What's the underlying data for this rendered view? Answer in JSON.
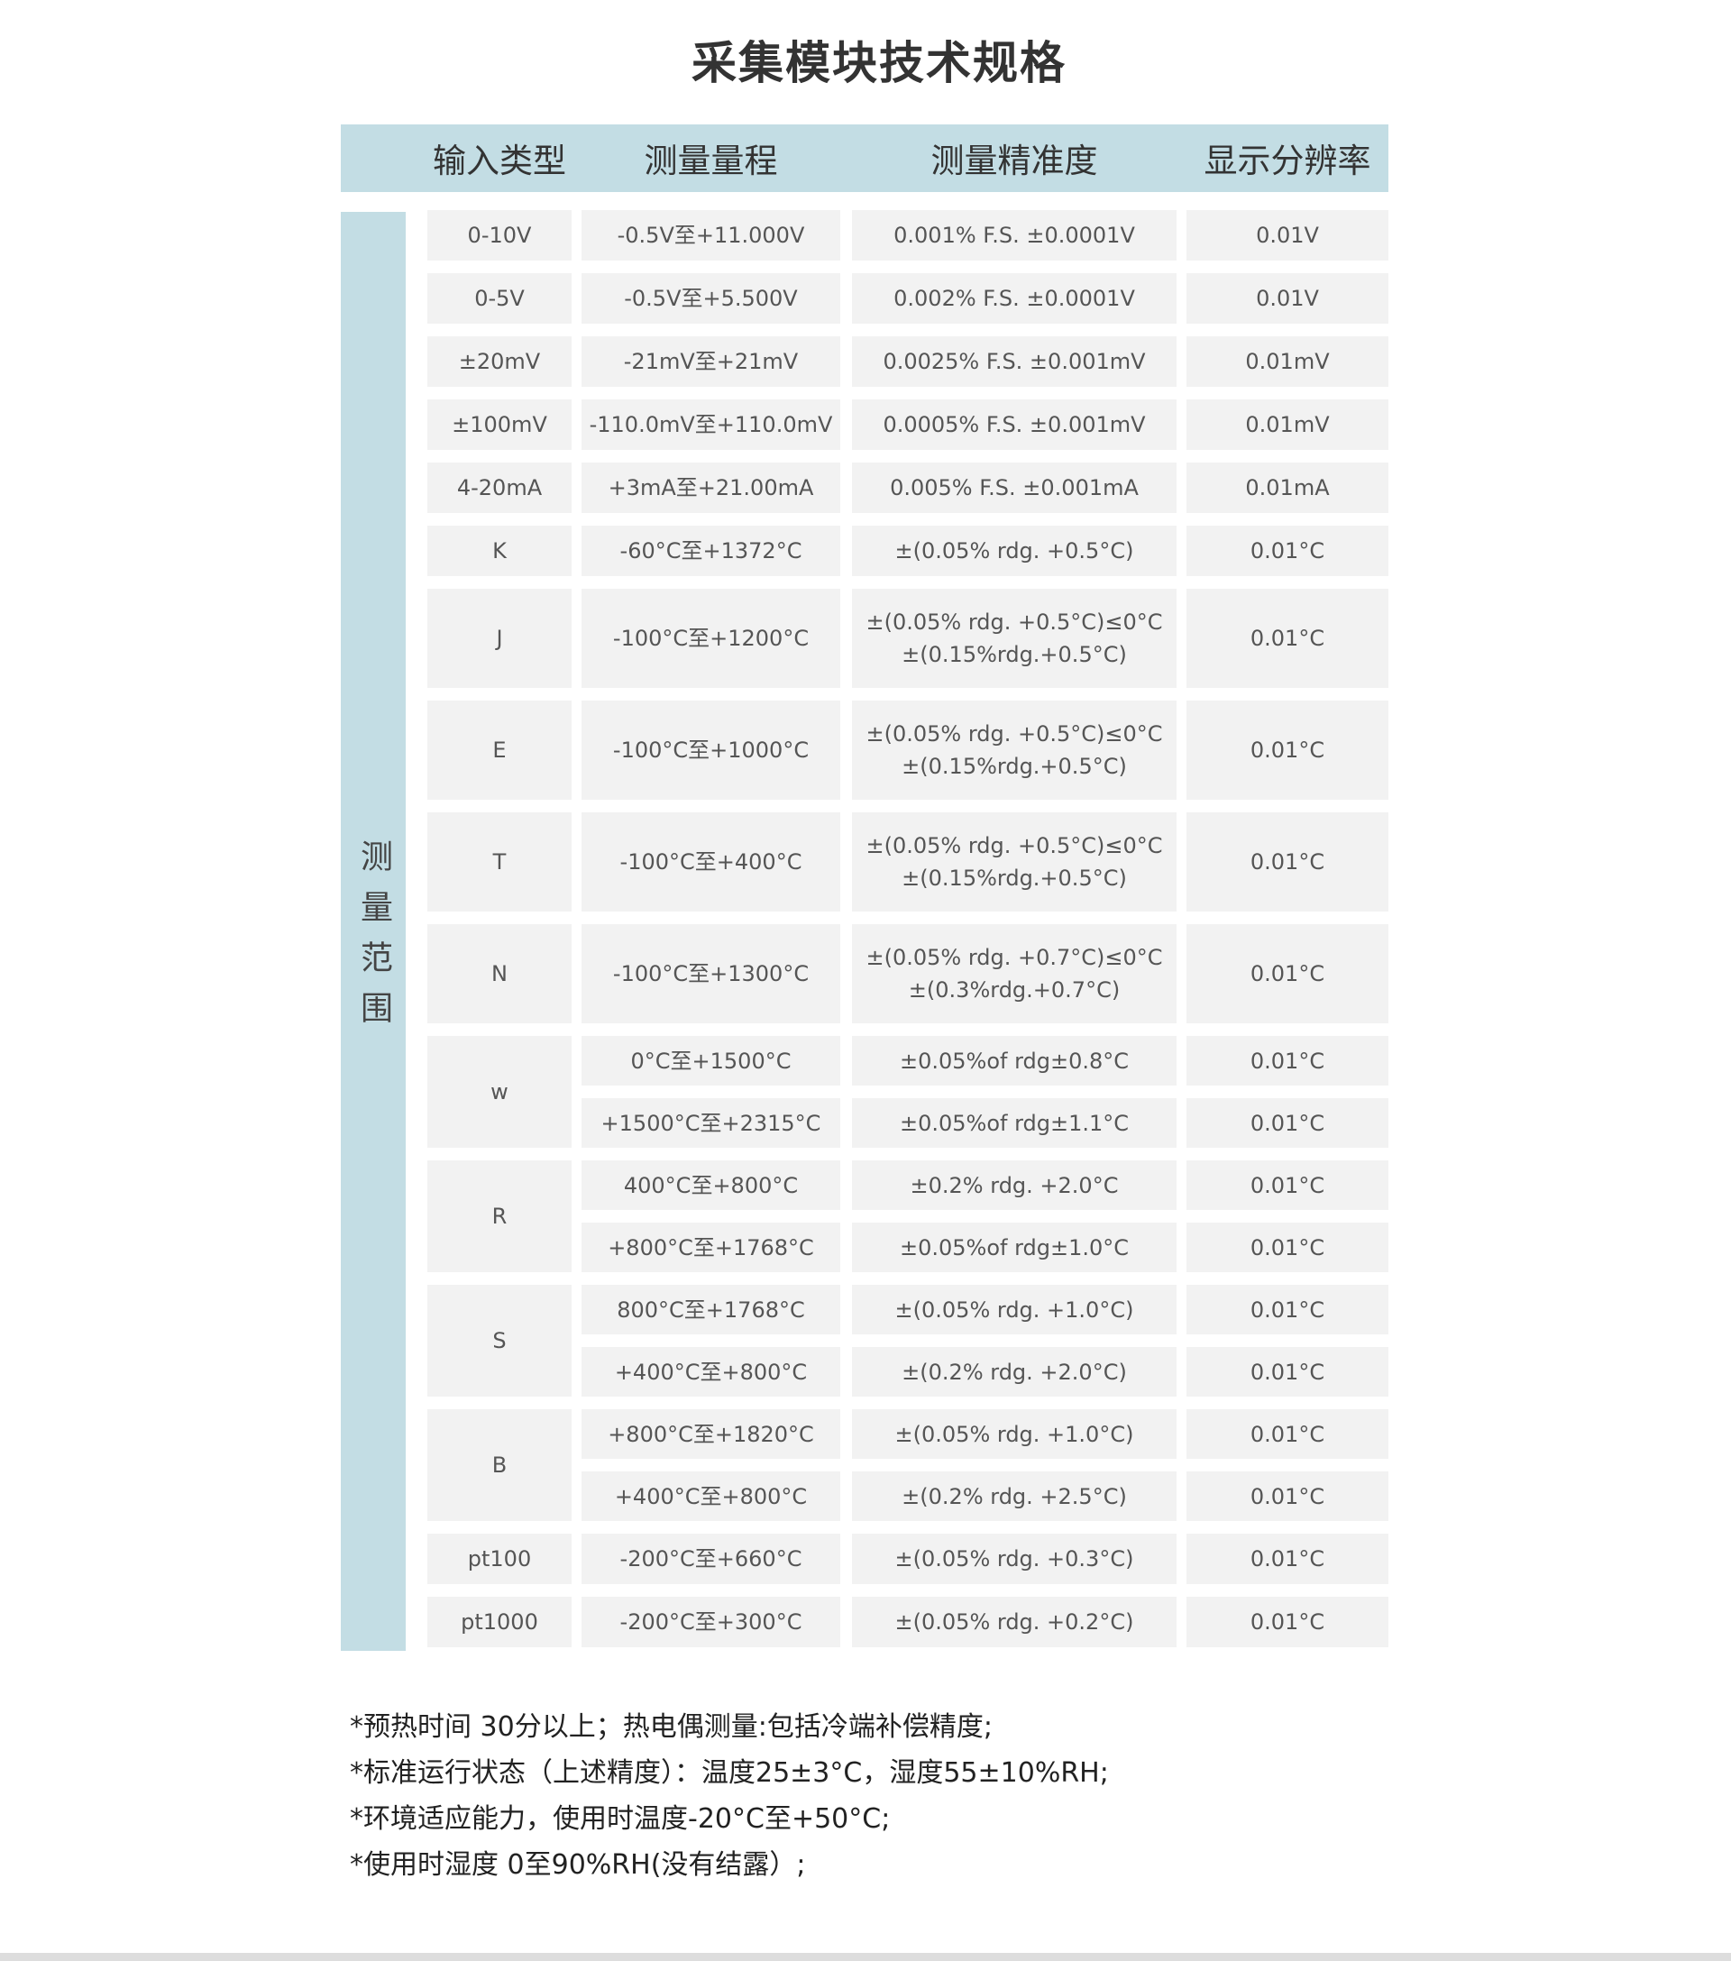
{
  "title": "采集模块技术规格",
  "header": [
    "输入类型",
    "测量量程",
    "测量精准度",
    "显示分辨率"
  ],
  "side_label": "测量范围",
  "rows": [
    {
      "type": "0-10V",
      "sub": [
        {
          "range": "-0.5V至+11.000V",
          "accuracy": "0.001% F.S.   ±0.0001V",
          "resolution": "0.01V"
        }
      ]
    },
    {
      "type": "0-5V",
      "sub": [
        {
          "range": "-0.5V至+5.500V",
          "accuracy": "0.002% F.S.   ±0.0001V",
          "resolution": "0.01V"
        }
      ]
    },
    {
      "type": "±20mV",
      "sub": [
        {
          "range": "-21mV至+21mV",
          "accuracy": "0.0025% F.S.  ±0.001mV",
          "resolution": "0.01mV"
        }
      ]
    },
    {
      "type": "±100mV",
      "sub": [
        {
          "range": "-110.0mV至+110.0mV",
          "accuracy": "0.0005% F.S.  ±0.001mV",
          "resolution": "0.01mV"
        }
      ]
    },
    {
      "type": "4-20mA",
      "sub": [
        {
          "range": "+3mA至+21.00mA",
          "accuracy": "0.005% F.S.   ±0.001mA",
          "resolution": "0.01mA"
        }
      ]
    },
    {
      "type": "K",
      "sub": [
        {
          "range": "-60°C至+1372°C",
          "accuracy": "±(0.05% rdg. +0.5°C)",
          "resolution": "0.01°C"
        }
      ]
    },
    {
      "type": "J",
      "tall": true,
      "sub": [
        {
          "range": "-100°C至+1200°C",
          "accuracy": "±(0.05% rdg. +0.5°C)≤0°C\n±(0.15%rdg.+0.5°C)",
          "resolution": "0.01°C"
        }
      ]
    },
    {
      "type": "E",
      "tall": true,
      "sub": [
        {
          "range": "-100°C至+1000°C",
          "accuracy": "±(0.05% rdg. +0.5°C)≤0°C\n±(0.15%rdg.+0.5°C)",
          "resolution": "0.01°C"
        }
      ]
    },
    {
      "type": "T",
      "tall": true,
      "sub": [
        {
          "range": "-100°C至+400°C",
          "accuracy": "±(0.05% rdg. +0.5°C)≤0°C\n±(0.15%rdg.+0.5°C)",
          "resolution": "0.01°C"
        }
      ]
    },
    {
      "type": "N",
      "tall": true,
      "sub": [
        {
          "range": "-100°C至+1300°C",
          "accuracy": "±(0.05% rdg. +0.7°C)≤0°C\n±(0.3%rdg.+0.7°C)",
          "resolution": "0.01°C"
        }
      ]
    },
    {
      "type": "w",
      "sub": [
        {
          "range": "0°C至+1500°C",
          "accuracy": "±0.05%of rdg±0.8°C",
          "resolution": "0.01°C"
        },
        {
          "range": "+1500°C至+2315°C",
          "accuracy": "±0.05%of rdg±1.1°C",
          "resolution": "0.01°C"
        }
      ]
    },
    {
      "type": "R",
      "sub": [
        {
          "range": "400°C至+800°C",
          "accuracy": "±0.2% rdg. +2.0°C",
          "resolution": "0.01°C"
        },
        {
          "range": "+800°C至+1768°C",
          "accuracy": "±0.05%of rdg±1.0°C",
          "resolution": "0.01°C"
        }
      ]
    },
    {
      "type": "S",
      "sub": [
        {
          "range": "800°C至+1768°C",
          "accuracy": "±(0.05% rdg. +1.0°C)",
          "resolution": "0.01°C"
        },
        {
          "range": "+400°C至+800°C",
          "accuracy": "±(0.2% rdg. +2.0°C)",
          "resolution": "0.01°C"
        }
      ]
    },
    {
      "type": "B",
      "sub": [
        {
          "range": "+800°C至+1820°C",
          "accuracy": "±(0.05% rdg. +1.0°C)",
          "resolution": "0.01°C"
        },
        {
          "range": "+400°C至+800°C",
          "accuracy": "±(0.2% rdg. +2.5°C)",
          "resolution": "0.01°C"
        }
      ]
    },
    {
      "type": "pt100",
      "sub": [
        {
          "range": "-200°C至+660°C",
          "accuracy": "±(0.05% rdg. +0.3°C)",
          "resolution": "0.01°C"
        }
      ]
    },
    {
      "type": "pt1000",
      "sub": [
        {
          "range": "-200°C至+300°C",
          "accuracy": "±(0.05% rdg. +0.2°C)",
          "resolution": "0.01°C"
        }
      ]
    }
  ],
  "notes": [
    "*预热时间  30分以上；热电偶测量:包括冷端补偿精度;",
    "*标准运行状态（上述精度）：温度25±3°C，湿度55±10%RH;",
    "*环境适应能力，使用时温度-20°C至+50°C;",
    "*使用时湿度 0至90%RH(没有结露）;"
  ],
  "colors": {
    "header_bg": "#c3dde4",
    "cell_bg": "#f2f2f2"
  }
}
